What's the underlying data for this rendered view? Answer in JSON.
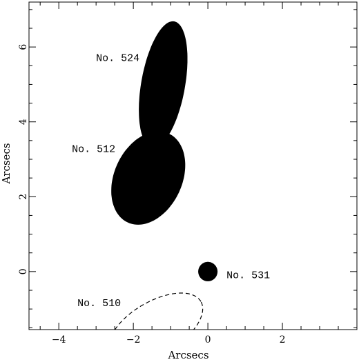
{
  "chart_data": {
    "type": "scatter",
    "title": "",
    "xlabel": "Arcsecs",
    "ylabel": "Arcsecs",
    "xlim": [
      -4.8,
      4.0
    ],
    "ylim": [
      -1.55,
      7.2
    ],
    "xticks": [
      -4,
      -2,
      0,
      2
    ],
    "yticks": [
      0,
      2,
      4,
      6
    ],
    "sources": [
      {
        "id": "No. 524",
        "cx": -1.2,
        "cy": 5.0,
        "a": 1.7,
        "b": 0.58,
        "pa_deg": 80,
        "style": "filled",
        "label_x": -3.0,
        "label_y": 5.7
      },
      {
        "id": "No. 512",
        "cx": -1.6,
        "cy": 2.5,
        "a": 1.3,
        "b": 0.9,
        "pa_deg": 65,
        "style": "filled",
        "label_x": -3.65,
        "label_y": 3.27
      },
      {
        "id": "No. 531",
        "cx": 0.0,
        "cy": 0.0,
        "a": 0.25,
        "b": 0.25,
        "pa_deg": 0,
        "style": "filled",
        "label_x": 0.5,
        "label_y": -0.1
      },
      {
        "id": "No. 510",
        "cx": -1.4,
        "cy": -1.5,
        "a": 1.4,
        "b": 0.7,
        "pa_deg": 30,
        "style": "dashed",
        "label_x": -3.5,
        "label_y": -0.85
      }
    ]
  }
}
